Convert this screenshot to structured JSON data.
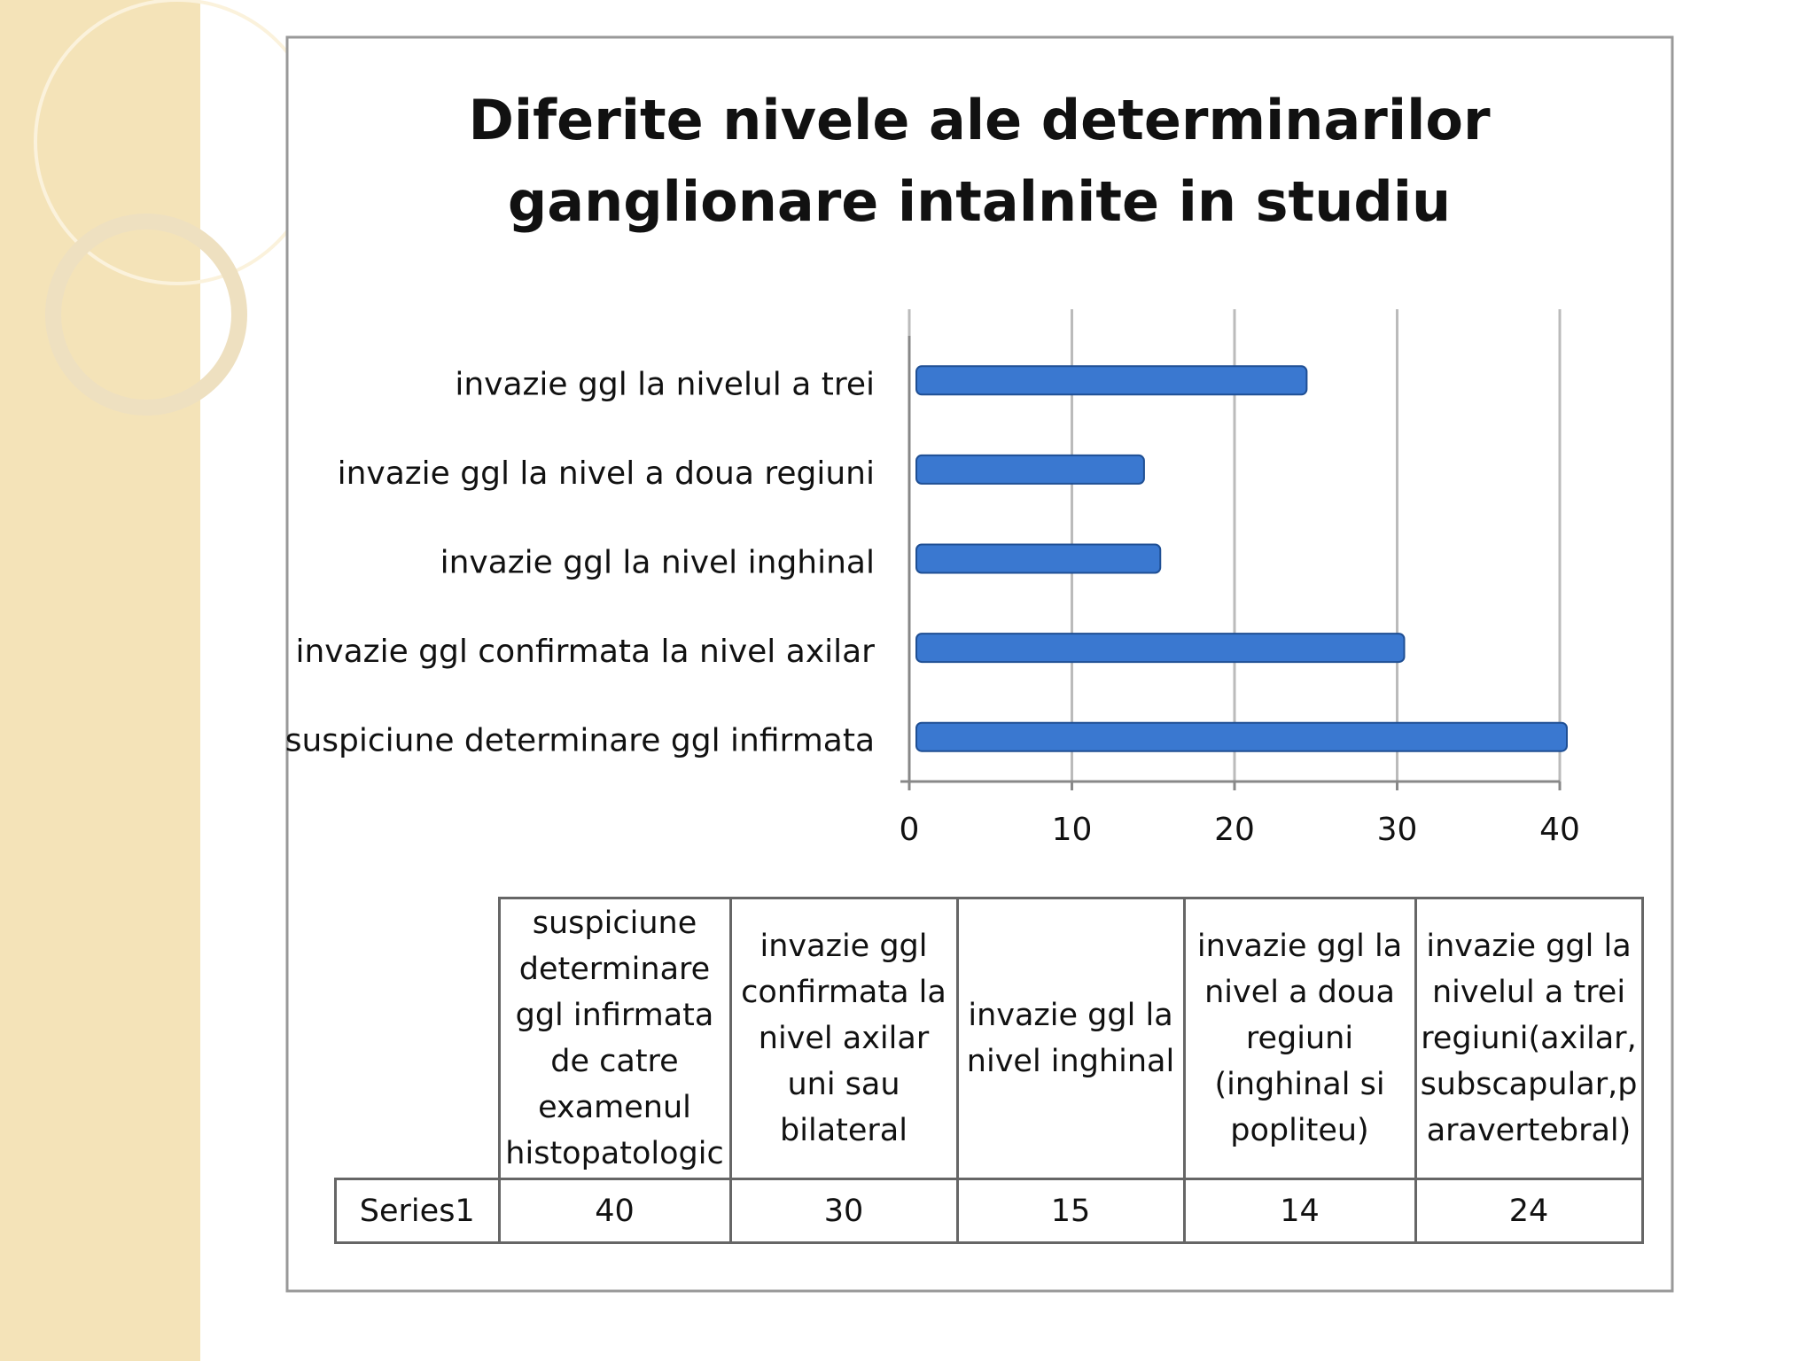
{
  "chart_data": {
    "type": "bar",
    "orientation": "horizontal",
    "title": "Diferite nivele ale determinarilor ganglionare intalnite in studiu",
    "categories": [
      "suspiciune determinare ggl infirmata",
      "invazie ggl confirmata la nivel axilar",
      "invazie ggl la nivel inghinal",
      "invazie ggl la nivel a doua regiuni",
      "invazie ggl la nivelul a trei"
    ],
    "series": [
      {
        "name": "Series1",
        "color": "#3a78d0",
        "values": [
          40,
          30,
          15,
          14,
          24
        ]
      }
    ],
    "xlim": [
      0,
      40
    ],
    "xticks": [
      0,
      10,
      20,
      30,
      40
    ],
    "grid": true,
    "table": {
      "headers": [
        "suspiciune determinare ggl infirmata de catre examenul histopatologic",
        "invazie ggl confirmata la nivel axilar uni sau bilateral",
        "invazie ggl la nivel inghinal",
        "invazie ggl la nivel a doua regiuni (inghinal si popliteu)",
        "invazie ggl la nivelul a trei regiuni(axilar, subscapular,paravertebral)"
      ]
    }
  }
}
